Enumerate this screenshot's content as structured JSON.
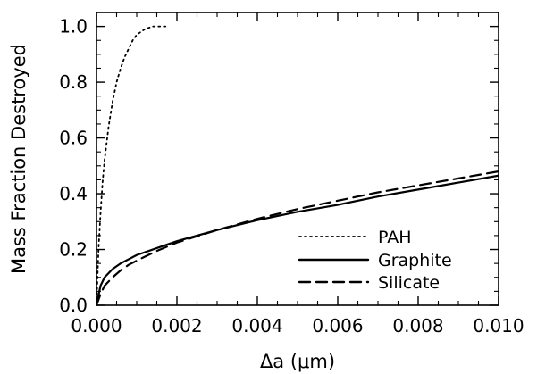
{
  "chart_data": {
    "type": "line",
    "xlabel": "Δa (μm)",
    "ylabel": "Mass Fraction Destroyed",
    "xlim": [
      0.0,
      0.01
    ],
    "ylim": [
      0.0,
      1.05
    ],
    "x_ticks": [
      "0.000",
      "0.002",
      "0.004",
      "0.006",
      "0.008",
      "0.010"
    ],
    "x_tick_values": [
      0.0,
      0.002,
      0.004,
      0.006,
      0.008,
      0.01
    ],
    "y_ticks": [
      "0.0",
      "0.2",
      "0.4",
      "0.6",
      "0.8",
      "1.0"
    ],
    "y_tick_values": [
      0.0,
      0.2,
      0.4,
      0.6,
      0.8,
      1.0
    ],
    "legend_position": "bottom-right",
    "grid": false,
    "series": [
      {
        "name": "PAH",
        "style": "dotted",
        "color": "#000000",
        "x": [
          0.0,
          5e-05,
          0.0001,
          0.00015,
          0.0002,
          0.0003,
          0.0004,
          0.0005,
          0.0006,
          0.0007,
          0.0008,
          0.0009,
          0.001,
          0.0012,
          0.0014,
          0.0016,
          0.0018
        ],
        "y": [
          0.0,
          0.2,
          0.33,
          0.44,
          0.52,
          0.64,
          0.73,
          0.8,
          0.85,
          0.89,
          0.92,
          0.95,
          0.97,
          0.99,
          1.0,
          1.0,
          1.0
        ]
      },
      {
        "name": "Graphite",
        "style": "solid",
        "color": "#000000",
        "x": [
          0.0,
          0.0001,
          0.0002,
          0.0004,
          0.0006,
          0.0008,
          0.001,
          0.0015,
          0.002,
          0.003,
          0.004,
          0.005,
          0.006,
          0.007,
          0.008,
          0.009,
          0.01
        ],
        "y": [
          0.0,
          0.07,
          0.1,
          0.13,
          0.15,
          0.165,
          0.18,
          0.205,
          0.23,
          0.27,
          0.305,
          0.335,
          0.36,
          0.39,
          0.415,
          0.44,
          0.465
        ]
      },
      {
        "name": "Silicate",
        "style": "dashed",
        "color": "#000000",
        "x": [
          0.0,
          0.0001,
          0.0002,
          0.0004,
          0.0006,
          0.0008,
          0.001,
          0.0015,
          0.002,
          0.003,
          0.004,
          0.005,
          0.006,
          0.007,
          0.008,
          0.009,
          0.01
        ],
        "y": [
          0.0,
          0.04,
          0.07,
          0.1,
          0.125,
          0.145,
          0.16,
          0.195,
          0.225,
          0.27,
          0.31,
          0.345,
          0.375,
          0.405,
          0.43,
          0.455,
          0.48
        ]
      }
    ]
  }
}
